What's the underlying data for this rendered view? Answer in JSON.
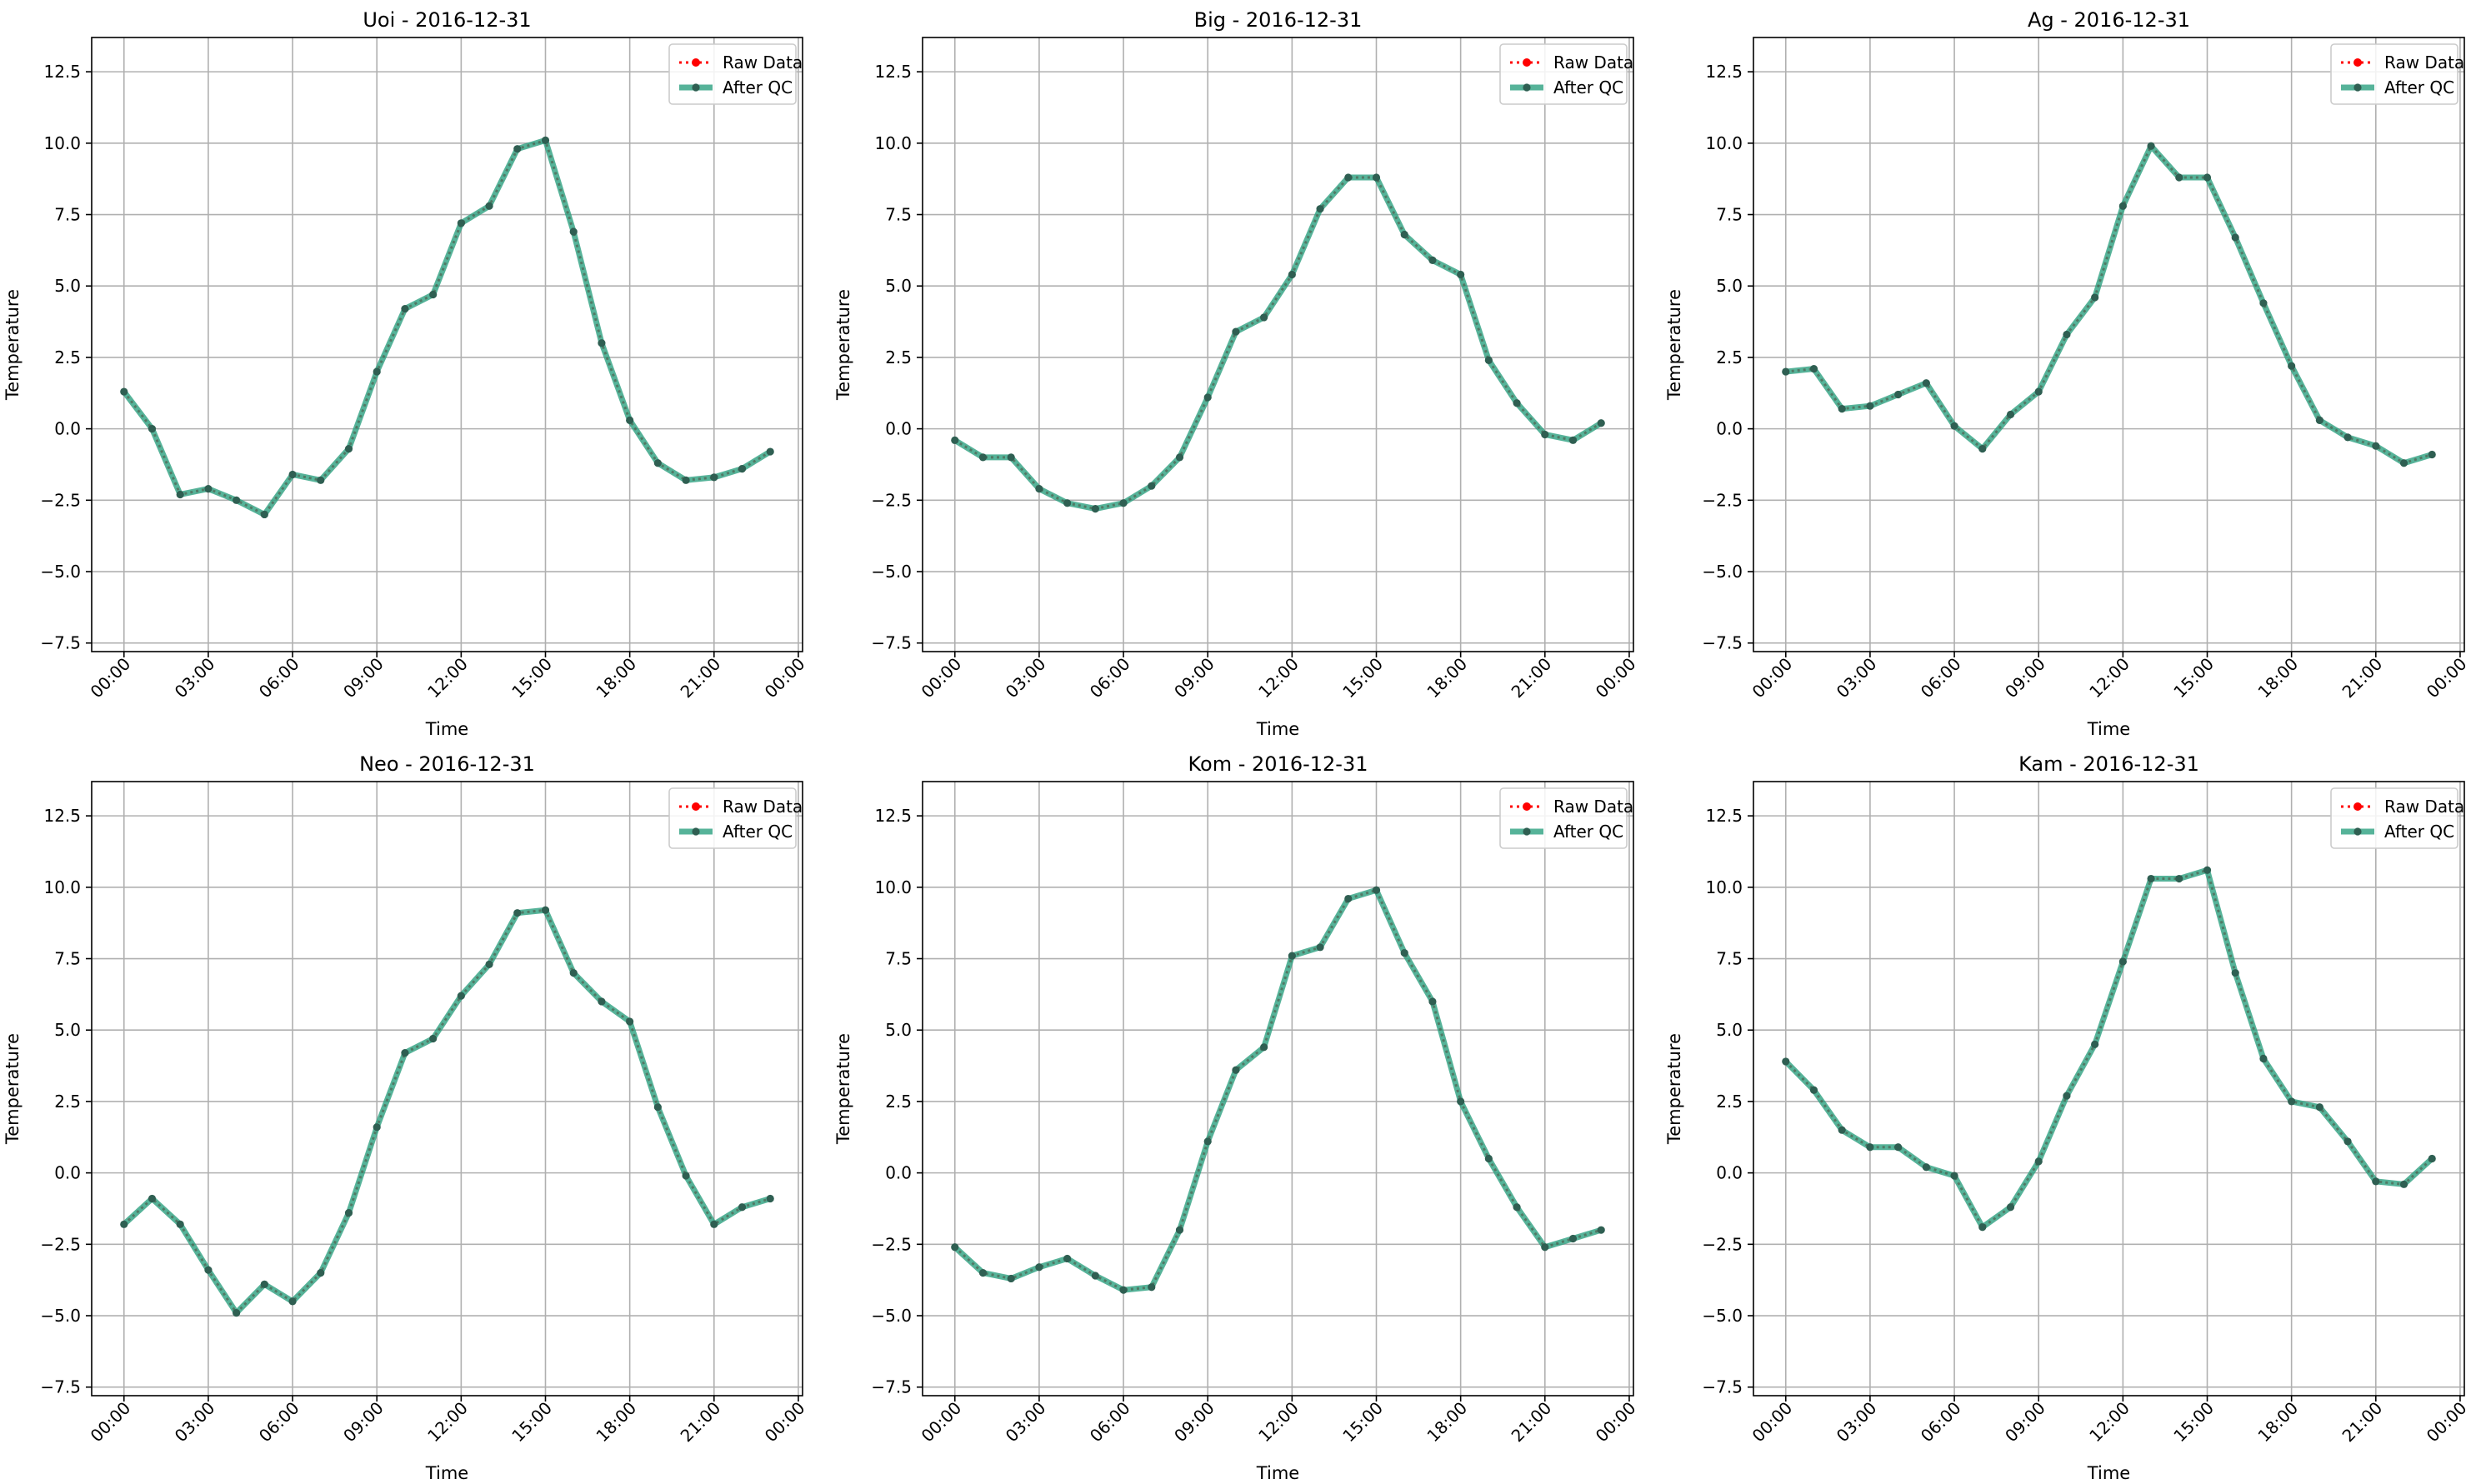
{
  "legend_labels": {
    "raw": "Raw Data",
    "qc": "After QC"
  },
  "colors": {
    "raw": "#ff0000",
    "qc": "#2ca080",
    "marker": "#2f5f52",
    "grid": "#b0b0b0"
  },
  "chart_data": [
    {
      "type": "line",
      "title": "Uoi - 2016-12-31",
      "xlabel": "Time",
      "ylabel": "Temperature",
      "xlim": [
        -1.15,
        24.15
      ],
      "ylim": [
        -7.8,
        13.7
      ],
      "yticks": [
        -7.5,
        -5.0,
        -2.5,
        0.0,
        2.5,
        5.0,
        7.5,
        10.0,
        12.5
      ],
      "xticks": [
        0,
        3,
        6,
        9,
        12,
        15,
        18,
        21,
        24
      ],
      "xtick_labels": [
        "00:00",
        "03:00",
        "06:00",
        "09:00",
        "12:00",
        "15:00",
        "18:00",
        "21:00",
        "00:00"
      ],
      "grid": true,
      "legend": "top-right",
      "x": [
        0,
        1,
        2,
        3,
        4,
        5,
        6,
        7,
        8,
        9,
        10,
        11,
        12,
        13,
        14,
        15,
        16,
        17,
        18,
        19,
        20,
        21,
        22,
        23
      ],
      "series": [
        {
          "name": "Raw Data",
          "values": [
            1.3,
            0.0,
            -2.3,
            -2.1,
            -2.5,
            -3.0,
            -1.6,
            -1.8,
            -0.7,
            2.0,
            4.2,
            4.7,
            7.2,
            7.8,
            9.8,
            10.1,
            6.9,
            3.0,
            0.3,
            -1.2,
            -1.8,
            -1.7,
            -1.4,
            -0.8
          ]
        },
        {
          "name": "After QC",
          "values": [
            1.3,
            0.0,
            -2.3,
            -2.1,
            -2.5,
            -3.0,
            -1.6,
            -1.8,
            -0.7,
            2.0,
            4.2,
            4.7,
            7.2,
            7.8,
            9.8,
            10.1,
            6.9,
            3.0,
            0.3,
            -1.2,
            -1.8,
            -1.7,
            -1.4,
            -0.8
          ]
        }
      ]
    },
    {
      "type": "line",
      "title": "Big - 2016-12-31",
      "xlabel": "Time",
      "ylabel": "Temperature",
      "xlim": [
        -1.15,
        24.15
      ],
      "ylim": [
        -7.8,
        13.7
      ],
      "yticks": [
        -7.5,
        -5.0,
        -2.5,
        0.0,
        2.5,
        5.0,
        7.5,
        10.0,
        12.5
      ],
      "xticks": [
        0,
        3,
        6,
        9,
        12,
        15,
        18,
        21,
        24
      ],
      "xtick_labels": [
        "00:00",
        "03:00",
        "06:00",
        "09:00",
        "12:00",
        "15:00",
        "18:00",
        "21:00",
        "00:00"
      ],
      "grid": true,
      "legend": "top-right",
      "x": [
        0,
        1,
        2,
        3,
        4,
        5,
        6,
        7,
        8,
        9,
        10,
        11,
        12,
        13,
        14,
        15,
        16,
        17,
        18,
        19,
        20,
        21,
        22,
        23
      ],
      "series": [
        {
          "name": "Raw Data",
          "values": [
            -0.4,
            -1.0,
            -1.0,
            -2.1,
            -2.6,
            -2.8,
            -2.6,
            -2.0,
            -1.0,
            1.1,
            3.4,
            3.9,
            5.4,
            7.7,
            8.8,
            8.8,
            6.8,
            5.9,
            5.4,
            2.4,
            0.9,
            -0.2,
            -0.4,
            0.2
          ]
        },
        {
          "name": "After QC",
          "values": [
            -0.4,
            -1.0,
            -1.0,
            -2.1,
            -2.6,
            -2.8,
            -2.6,
            -2.0,
            -1.0,
            1.1,
            3.4,
            3.9,
            5.4,
            7.7,
            8.8,
            8.8,
            6.8,
            5.9,
            5.4,
            2.4,
            0.9,
            -0.2,
            -0.4,
            0.2
          ]
        }
      ]
    },
    {
      "type": "line",
      "title": "Ag - 2016-12-31",
      "xlabel": "Time",
      "ylabel": "Temperature",
      "xlim": [
        -1.15,
        24.15
      ],
      "ylim": [
        -7.8,
        13.7
      ],
      "yticks": [
        -7.5,
        -5.0,
        -2.5,
        0.0,
        2.5,
        5.0,
        7.5,
        10.0,
        12.5
      ],
      "xticks": [
        0,
        3,
        6,
        9,
        12,
        15,
        18,
        21,
        24
      ],
      "xtick_labels": [
        "00:00",
        "03:00",
        "06:00",
        "09:00",
        "12:00",
        "15:00",
        "18:00",
        "21:00",
        "00:00"
      ],
      "grid": true,
      "legend": "top-right",
      "x": [
        0,
        1,
        2,
        3,
        4,
        5,
        6,
        7,
        8,
        9,
        10,
        11,
        12,
        13,
        14,
        15,
        16,
        17,
        18,
        19,
        20,
        21,
        22,
        23
      ],
      "series": [
        {
          "name": "Raw Data",
          "values": [
            2.0,
            2.1,
            0.7,
            0.8,
            1.2,
            1.6,
            0.1,
            -0.7,
            0.5,
            1.3,
            3.3,
            4.6,
            7.8,
            9.9,
            8.8,
            8.8,
            6.7,
            4.4,
            2.2,
            0.3,
            -0.3,
            -0.6,
            -1.2,
            -0.9
          ]
        },
        {
          "name": "After QC",
          "values": [
            2.0,
            2.1,
            0.7,
            0.8,
            1.2,
            1.6,
            0.1,
            -0.7,
            0.5,
            1.3,
            3.3,
            4.6,
            7.8,
            9.9,
            8.8,
            8.8,
            6.7,
            4.4,
            2.2,
            0.3,
            -0.3,
            -0.6,
            -1.2,
            -0.9
          ]
        }
      ]
    },
    {
      "type": "line",
      "title": "Neo - 2016-12-31",
      "xlabel": "Time",
      "ylabel": "Temperature",
      "xlim": [
        -1.15,
        24.15
      ],
      "ylim": [
        -7.8,
        13.7
      ],
      "yticks": [
        -7.5,
        -5.0,
        -2.5,
        0.0,
        2.5,
        5.0,
        7.5,
        10.0,
        12.5
      ],
      "xticks": [
        0,
        3,
        6,
        9,
        12,
        15,
        18,
        21,
        24
      ],
      "xtick_labels": [
        "00:00",
        "03:00",
        "06:00",
        "09:00",
        "12:00",
        "15:00",
        "18:00",
        "21:00",
        "00:00"
      ],
      "grid": true,
      "legend": "top-right",
      "x": [
        0,
        1,
        2,
        3,
        4,
        5,
        6,
        7,
        8,
        9,
        10,
        11,
        12,
        13,
        14,
        15,
        16,
        17,
        18,
        19,
        20,
        21,
        22,
        23
      ],
      "series": [
        {
          "name": "Raw Data",
          "values": [
            -1.8,
            -0.9,
            -1.8,
            -3.4,
            -4.9,
            -3.9,
            -4.5,
            -3.5,
            -1.4,
            1.6,
            4.2,
            4.7,
            6.2,
            7.3,
            9.1,
            9.2,
            7.0,
            6.0,
            5.3,
            2.3,
            -0.1,
            -1.8,
            -1.2,
            -0.9
          ]
        },
        {
          "name": "After QC",
          "values": [
            -1.8,
            -0.9,
            -1.8,
            -3.4,
            -4.9,
            -3.9,
            -4.5,
            -3.5,
            -1.4,
            1.6,
            4.2,
            4.7,
            6.2,
            7.3,
            9.1,
            9.2,
            7.0,
            6.0,
            5.3,
            2.3,
            -0.1,
            -1.8,
            -1.2,
            -0.9
          ]
        }
      ]
    },
    {
      "type": "line",
      "title": "Kom - 2016-12-31",
      "xlabel": "Time",
      "ylabel": "Temperature",
      "xlim": [
        -1.15,
        24.15
      ],
      "ylim": [
        -7.8,
        13.7
      ],
      "yticks": [
        -7.5,
        -5.0,
        -2.5,
        0.0,
        2.5,
        5.0,
        7.5,
        10.0,
        12.5
      ],
      "xticks": [
        0,
        3,
        6,
        9,
        12,
        15,
        18,
        21,
        24
      ],
      "xtick_labels": [
        "00:00",
        "03:00",
        "06:00",
        "09:00",
        "12:00",
        "15:00",
        "18:00",
        "21:00",
        "00:00"
      ],
      "grid": true,
      "legend": "top-right",
      "x": [
        0,
        1,
        2,
        3,
        4,
        5,
        6,
        7,
        8,
        9,
        10,
        11,
        12,
        13,
        14,
        15,
        16,
        17,
        18,
        19,
        20,
        21,
        22,
        23
      ],
      "series": [
        {
          "name": "Raw Data",
          "values": [
            -2.6,
            -3.5,
            -3.7,
            -3.3,
            -3.0,
            -3.6,
            -4.1,
            -4.0,
            -2.0,
            1.1,
            3.6,
            4.4,
            7.6,
            7.9,
            9.6,
            9.9,
            7.7,
            6.0,
            2.5,
            0.5,
            -1.2,
            -2.6,
            -2.3,
            -2.0
          ]
        },
        {
          "name": "After QC",
          "values": [
            -2.6,
            -3.5,
            -3.7,
            -3.3,
            -3.0,
            -3.6,
            -4.1,
            -4.0,
            -2.0,
            1.1,
            3.6,
            4.4,
            7.6,
            7.9,
            9.6,
            9.9,
            7.7,
            6.0,
            2.5,
            0.5,
            -1.2,
            -2.6,
            -2.3,
            -2.0
          ]
        }
      ]
    },
    {
      "type": "line",
      "title": "Kam - 2016-12-31",
      "xlabel": "Time",
      "ylabel": "Temperature",
      "xlim": [
        -1.15,
        24.15
      ],
      "ylim": [
        -7.8,
        13.7
      ],
      "yticks": [
        -7.5,
        -5.0,
        -2.5,
        0.0,
        2.5,
        5.0,
        7.5,
        10.0,
        12.5
      ],
      "xticks": [
        0,
        3,
        6,
        9,
        12,
        15,
        18,
        21,
        24
      ],
      "xtick_labels": [
        "00:00",
        "03:00",
        "06:00",
        "09:00",
        "12:00",
        "15:00",
        "18:00",
        "21:00",
        "00:00"
      ],
      "grid": true,
      "legend": "top-right",
      "x": [
        0,
        1,
        2,
        3,
        4,
        5,
        6,
        7,
        8,
        9,
        10,
        11,
        12,
        13,
        14,
        15,
        16,
        17,
        18,
        19,
        20,
        21,
        22,
        23
      ],
      "series": [
        {
          "name": "Raw Data",
          "values": [
            3.9,
            2.9,
            1.5,
            0.9,
            0.9,
            0.2,
            -0.1,
            -1.9,
            -1.2,
            0.4,
            2.7,
            4.5,
            7.4,
            10.3,
            10.3,
            10.6,
            7.0,
            4.0,
            2.5,
            2.3,
            1.1,
            -0.3,
            -0.4,
            0.5
          ]
        },
        {
          "name": "After QC",
          "values": [
            3.9,
            2.9,
            1.5,
            0.9,
            0.9,
            0.2,
            -0.1,
            -1.9,
            -1.2,
            0.4,
            2.7,
            4.5,
            7.4,
            10.3,
            10.3,
            10.6,
            7.0,
            4.0,
            2.5,
            2.3,
            1.1,
            -0.3,
            -0.4,
            0.5
          ]
        }
      ]
    }
  ]
}
